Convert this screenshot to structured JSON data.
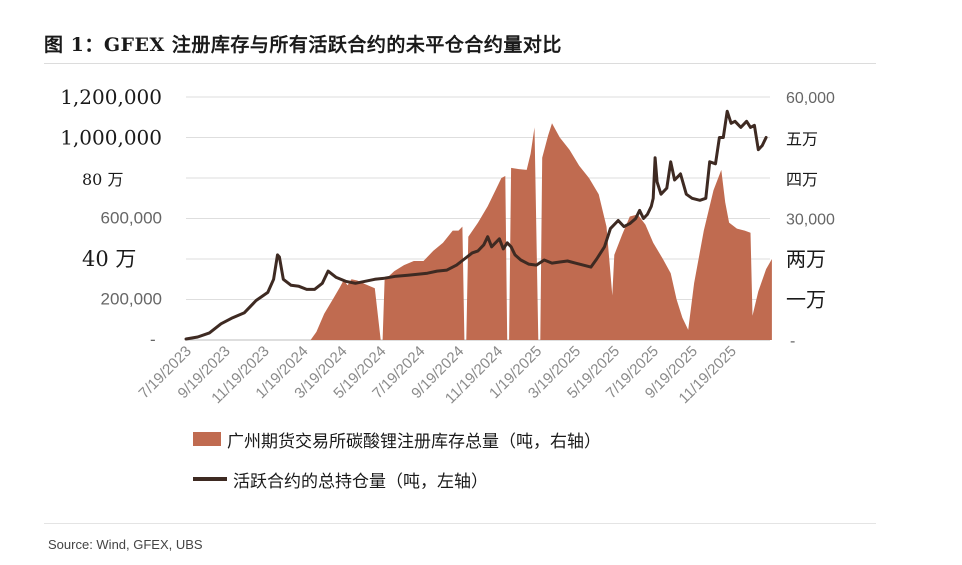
{
  "title": "图 1：GFEX 注册库存与所有活跃合约的未平仓合约量对比",
  "source": "Source: Wind, GFEX, UBS",
  "colors": {
    "area": "#c06b50",
    "line": "#3e2a22",
    "axis_text": "#666666",
    "handwritten": "#1a1a1a"
  },
  "chart_data": {
    "type": "area",
    "title": "GFEX 注册库存与所有活跃合约的未平仓合约量对比",
    "x_tick_labels": [
      "7/19/2023",
      "9/19/2023",
      "11/19/2023",
      "1/19/2024",
      "3/19/2024",
      "5/19/2024",
      "7/19/2024",
      "9/19/2024",
      "11/19/2024",
      "1/19/2025",
      "3/19/2025",
      "5/19/2025",
      "7/19/2025",
      "9/19/2025",
      "11/19/2025"
    ],
    "left_axis": {
      "ylim": [
        0,
        1200000
      ],
      "tick_values": [
        0,
        200000,
        400000,
        600000,
        800000,
        1000000,
        1200000
      ],
      "tick_labels": [
        "-",
        "200,000",
        "40 万",
        "600,000",
        "80 万",
        "1,000,000",
        "1,200,000"
      ]
    },
    "right_axis": {
      "ylim": [
        0,
        60000
      ],
      "tick_values": [
        0,
        10000,
        20000,
        30000,
        40000,
        50000,
        60000
      ],
      "tick_labels": [
        "-",
        "一万",
        "两万",
        "30,000",
        "四万",
        "五万",
        "60,000"
      ]
    },
    "series": [
      {
        "name": "广州期货交易所碳酸锂注册库存总量（吨，右轴）",
        "type": "area",
        "axis": "right",
        "points": [
          [
            3.2,
            0
          ],
          [
            3.35,
            2000
          ],
          [
            3.55,
            6500
          ],
          [
            3.8,
            10500
          ],
          [
            3.95,
            13000
          ],
          [
            4.05,
            14800
          ],
          [
            4.15,
            13500
          ],
          [
            4.25,
            15000
          ],
          [
            4.4,
            14700
          ],
          [
            4.6,
            13800
          ],
          [
            4.85,
            12800
          ],
          [
            5.0,
            0
          ],
          [
            5.05,
            0
          ],
          [
            5.1,
            14800
          ],
          [
            5.35,
            17000
          ],
          [
            5.6,
            18500
          ],
          [
            5.85,
            19500
          ],
          [
            6.1,
            19500
          ],
          [
            6.35,
            22000
          ],
          [
            6.6,
            24000
          ],
          [
            6.85,
            27000
          ],
          [
            7.0,
            27000
          ],
          [
            7.1,
            28000
          ],
          [
            7.15,
            0
          ],
          [
            7.2,
            0
          ],
          [
            7.25,
            25500
          ],
          [
            7.5,
            29000
          ],
          [
            7.75,
            33000
          ],
          [
            7.95,
            37000
          ],
          [
            8.1,
            40000
          ],
          [
            8.2,
            40500
          ],
          [
            8.25,
            0
          ],
          [
            8.3,
            0
          ],
          [
            8.35,
            42500
          ],
          [
            8.55,
            42200
          ],
          [
            8.75,
            42000
          ],
          [
            8.85,
            46000
          ],
          [
            8.95,
            52500
          ],
          [
            9.05,
            0
          ],
          [
            9.1,
            0
          ],
          [
            9.15,
            45000
          ],
          [
            9.3,
            50500
          ],
          [
            9.4,
            53500
          ],
          [
            9.6,
            50000
          ],
          [
            9.85,
            47000
          ],
          [
            10.1,
            43000
          ],
          [
            10.35,
            40000
          ],
          [
            10.6,
            36000
          ],
          [
            10.8,
            28000
          ],
          [
            10.95,
            11000
          ],
          [
            11.0,
            21000
          ],
          [
            11.2,
            26000
          ],
          [
            11.4,
            30500
          ],
          [
            11.6,
            31000
          ],
          [
            11.8,
            28500
          ],
          [
            12.0,
            24000
          ],
          [
            12.25,
            20000
          ],
          [
            12.45,
            16500
          ],
          [
            12.6,
            10000
          ],
          [
            12.75,
            5500
          ],
          [
            12.9,
            2500
          ],
          [
            13.05,
            14000
          ],
          [
            13.3,
            27000
          ],
          [
            13.55,
            37000
          ],
          [
            13.75,
            42000
          ],
          [
            13.85,
            34000
          ],
          [
            13.95,
            29000
          ],
          [
            14.15,
            27500
          ],
          [
            14.35,
            27000
          ],
          [
            14.5,
            26500
          ],
          [
            14.55,
            6000
          ],
          [
            14.7,
            12000
          ],
          [
            14.9,
            17500
          ],
          [
            15.05,
            20000
          ],
          [
            15.05,
            0
          ]
        ]
      },
      {
        "name": "活跃合约的总持仓量（吨，左轴）",
        "type": "line",
        "axis": "left",
        "points": [
          [
            0.0,
            5000
          ],
          [
            0.3,
            15000
          ],
          [
            0.6,
            35000
          ],
          [
            0.9,
            80000
          ],
          [
            1.2,
            110000
          ],
          [
            1.5,
            135000
          ],
          [
            1.8,
            195000
          ],
          [
            2.1,
            235000
          ],
          [
            2.25,
            300000
          ],
          [
            2.35,
            420000
          ],
          [
            2.4,
            410000
          ],
          [
            2.5,
            300000
          ],
          [
            2.7,
            270000
          ],
          [
            2.9,
            265000
          ],
          [
            3.1,
            250000
          ],
          [
            3.3,
            250000
          ],
          [
            3.5,
            280000
          ],
          [
            3.65,
            340000
          ],
          [
            3.85,
            310000
          ],
          [
            4.1,
            290000
          ],
          [
            4.35,
            280000
          ],
          [
            4.6,
            290000
          ],
          [
            4.85,
            300000
          ],
          [
            5.1,
            305000
          ],
          [
            5.4,
            315000
          ],
          [
            5.7,
            320000
          ],
          [
            5.95,
            325000
          ],
          [
            6.2,
            330000
          ],
          [
            6.45,
            340000
          ],
          [
            6.7,
            345000
          ],
          [
            6.95,
            370000
          ],
          [
            7.15,
            400000
          ],
          [
            7.35,
            430000
          ],
          [
            7.5,
            440000
          ],
          [
            7.65,
            470000
          ],
          [
            7.75,
            510000
          ],
          [
            7.85,
            460000
          ],
          [
            7.95,
            480000
          ],
          [
            8.05,
            500000
          ],
          [
            8.15,
            450000
          ],
          [
            8.25,
            480000
          ],
          [
            8.35,
            460000
          ],
          [
            8.45,
            420000
          ],
          [
            8.6,
            395000
          ],
          [
            8.8,
            375000
          ],
          [
            9.0,
            370000
          ],
          [
            9.2,
            395000
          ],
          [
            9.4,
            380000
          ],
          [
            9.6,
            385000
          ],
          [
            9.8,
            390000
          ],
          [
            10.0,
            380000
          ],
          [
            10.2,
            370000
          ],
          [
            10.4,
            360000
          ],
          [
            10.55,
            400000
          ],
          [
            10.75,
            460000
          ],
          [
            10.9,
            550000
          ],
          [
            11.1,
            590000
          ],
          [
            11.25,
            560000
          ],
          [
            11.4,
            575000
          ],
          [
            11.55,
            600000
          ],
          [
            11.65,
            640000
          ],
          [
            11.75,
            600000
          ],
          [
            11.85,
            620000
          ],
          [
            11.95,
            660000
          ],
          [
            12.0,
            700000
          ],
          [
            12.05,
            900000
          ],
          [
            12.1,
            780000
          ],
          [
            12.2,
            720000
          ],
          [
            12.35,
            750000
          ],
          [
            12.45,
            880000
          ],
          [
            12.55,
            790000
          ],
          [
            12.7,
            820000
          ],
          [
            12.85,
            720000
          ],
          [
            13.0,
            700000
          ],
          [
            13.2,
            690000
          ],
          [
            13.35,
            700000
          ],
          [
            13.45,
            880000
          ],
          [
            13.6,
            870000
          ],
          [
            13.7,
            1000000
          ],
          [
            13.8,
            1000000
          ],
          [
            13.9,
            1130000
          ],
          [
            14.0,
            1070000
          ],
          [
            14.1,
            1080000
          ],
          [
            14.25,
            1050000
          ],
          [
            14.4,
            1080000
          ],
          [
            14.5,
            1050000
          ],
          [
            14.6,
            1060000
          ],
          [
            14.7,
            940000
          ],
          [
            14.8,
            960000
          ],
          [
            14.9,
            1000000
          ]
        ]
      }
    ],
    "legend": [
      "广州期货交易所碳酸锂注册库存总量（吨，右轴）",
      "活跃合约的总持仓量（吨，左轴）"
    ],
    "legend_position": "bottom"
  }
}
